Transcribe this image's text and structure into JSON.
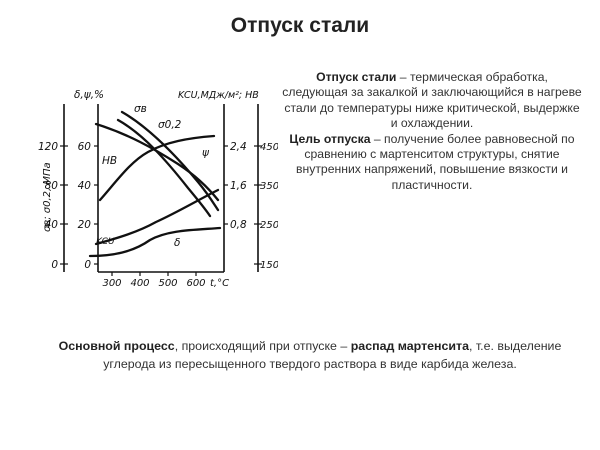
{
  "page": {
    "title": "Отпуск стали"
  },
  "description": {
    "term1": "Отпуск стали",
    "text1": " – термическая обработка, следующая за закалкой и заключающийся в нагреве стали до температуры ниже критической, выдержке и охлаждении.",
    "term2": "Цель отпуска",
    "text2": " – получение более равновесной по сравнению с мартенситом структуры, снятие внутренних напряжений, повышение вязкости и пластичности."
  },
  "bottom": {
    "lead": "Основной процесс",
    "text1": ", происходящий при отпуске – ",
    "emphasis": "распад мартенсита",
    "text2": ", т.е. выделение углерода из пересыщенного твердого раствора в виде карбида железа."
  },
  "chart_data": {
    "type": "line",
    "xlabel": "t,°C",
    "x_ticks": [
      "300",
      "400",
      "500",
      "600"
    ],
    "axis_labels": {
      "inner_left_top": "δ,ψ,%",
      "outer_left_side": "σв; σ0,2, МПа",
      "inner_right_top": "KCU,МДж/м²; НВ"
    },
    "y_left_outer_ticks": [
      "0",
      "40",
      "80",
      "120"
    ],
    "y_left_inner_ticks": [
      "0",
      "20",
      "40",
      "60"
    ],
    "y_right_inner_ticks": [
      "0,8",
      "1,6",
      "2,4"
    ],
    "y_right_outer_ticks": [
      "150",
      "250",
      "350",
      "450"
    ],
    "curve_labels": [
      "σв",
      "σ0,2",
      "НВ",
      "ψ",
      "δ",
      "KCU"
    ],
    "series": [
      {
        "name": "σв",
        "x": [
          290,
          400,
          500,
          600
        ],
        "y_mpa": [
          1380,
          1210,
          980,
          760
        ]
      },
      {
        "name": "σ0,2",
        "x": [
          290,
          400,
          500,
          600
        ],
        "y_mpa": [
          1270,
          1130,
          900,
          680
        ]
      },
      {
        "name": "НВ",
        "x": [
          280,
          400,
          500,
          640
        ],
        "y_hb": [
          420,
          380,
          330,
          245
        ]
      },
      {
        "name": "ψ",
        "x": [
          290,
          400,
          500,
          640
        ],
        "y_pct": [
          38,
          52,
          58,
          61
        ]
      },
      {
        "name": "δ",
        "x": [
          280,
          400,
          500,
          640
        ],
        "y_pct": [
          6,
          9,
          12,
          17
        ]
      },
      {
        "name": "KCU",
        "x": [
          260,
          400,
          500,
          640
        ],
        "y_mj": [
          0.2,
          0.35,
          0.5,
          0.85
        ]
      }
    ]
  }
}
